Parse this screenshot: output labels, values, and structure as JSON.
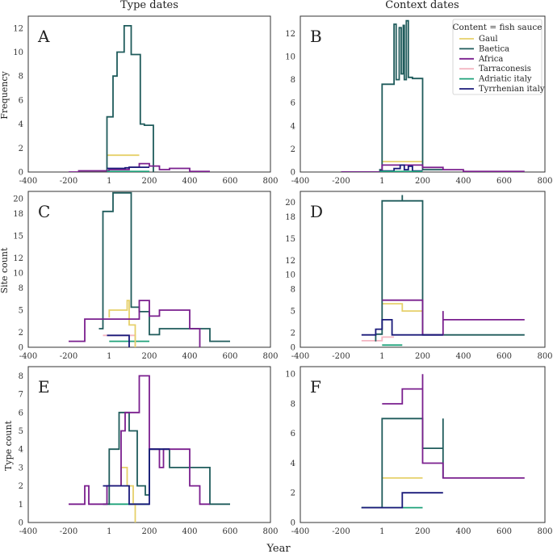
{
  "figure": {
    "col_titles": [
      "Type dates",
      "Context dates"
    ],
    "xlabel": "Year",
    "row_ylabels": [
      "Frequency",
      "Site count",
      "Type count"
    ],
    "legend": {
      "title": "Content = fish sauce",
      "placement": "top-right of panel B",
      "entries": [
        {
          "name": "Gaul",
          "color": "#e6d06a"
        },
        {
          "name": "Baetica",
          "color": "#1f5b5b"
        },
        {
          "name": "Africa",
          "color": "#7a1f8e"
        },
        {
          "name": "Tarraconesis",
          "color": "#f4b6c2"
        },
        {
          "name": "Adriatic italy",
          "color": "#1fa27a"
        },
        {
          "name": "Tyrrhenian italy",
          "color": "#1a1a7a"
        }
      ]
    }
  },
  "chart_data": [
    {
      "panel": "A",
      "type": "line",
      "step": true,
      "xlim": [
        -400,
        800
      ],
      "ylim": [
        0,
        13
      ],
      "xticks": [
        "-400",
        "-200",
        "1",
        "200",
        "400",
        "600",
        "800"
      ],
      "xtick_values": [
        -400,
        -200,
        1,
        200,
        400,
        600,
        800
      ],
      "yticks": [
        "0",
        "2",
        "4",
        "6",
        "8",
        "10",
        "12"
      ],
      "ytick_values": [
        0,
        2,
        4,
        6,
        8,
        10,
        12
      ],
      "series": [
        {
          "color": "#e6d06a",
          "x": [
            -10,
            100,
            100,
            150
          ],
          "y": [
            1.4,
            1.4,
            1.4,
            1.4
          ]
        },
        {
          "color": "#1f5b5b",
          "x": [
            -10,
            -10,
            20,
            20,
            40,
            40,
            75,
            75,
            110,
            110,
            155,
            155,
            175,
            175,
            220,
            220
          ],
          "y": [
            0,
            4.6,
            4.6,
            8,
            8,
            10,
            10,
            12.2,
            12.2,
            9.8,
            9.8,
            4,
            4,
            3.9,
            3.9,
            0
          ]
        },
        {
          "color": "#7a1f8e",
          "x": [
            -200,
            -150,
            -150,
            0,
            0,
            100,
            100,
            150,
            150,
            200,
            200,
            250,
            250,
            300,
            300,
            400,
            400,
            500
          ],
          "y": [
            0,
            0,
            0.1,
            0.1,
            0.2,
            0.2,
            0.4,
            0.4,
            0.7,
            0.7,
            0.5,
            0.5,
            0.2,
            0.2,
            0.3,
            0.3,
            0.05,
            0.05
          ]
        },
        {
          "color": "#1a1a7a",
          "x": [
            -10,
            80,
            80,
            100,
            100,
            200
          ],
          "y": [
            0.3,
            0.3,
            0.35,
            0.35,
            0.4,
            0.4
          ]
        },
        {
          "color": "#1fa27a",
          "x": [
            -10,
            200
          ],
          "y": [
            0.05,
            0.05
          ]
        }
      ]
    },
    {
      "panel": "B",
      "type": "line",
      "step": true,
      "xlim": [
        -400,
        800
      ],
      "ylim": [
        0,
        13.5
      ],
      "xticks": [
        "-400",
        "-200",
        "1",
        "200",
        "400",
        "600",
        "800"
      ],
      "xtick_values": [
        -400,
        -200,
        1,
        200,
        400,
        600,
        800
      ],
      "yticks": [
        "0",
        "2",
        "4",
        "6",
        "8",
        "10",
        "12"
      ],
      "ytick_values": [
        0,
        2,
        4,
        6,
        8,
        10,
        12
      ],
      "series": [
        {
          "color": "#e6d06a",
          "x": [
            1,
            200
          ],
          "y": [
            0.9,
            0.9
          ]
        },
        {
          "color": "#1f5b5b",
          "x": [
            -200,
            -10,
            -10,
            1,
            1,
            60,
            60,
            70,
            70,
            85,
            85,
            95,
            95,
            105,
            105,
            110,
            110,
            120,
            120,
            130,
            130,
            140,
            140,
            150,
            150,
            200,
            200,
            300
          ],
          "y": [
            0,
            0,
            0.2,
            0.2,
            7.6,
            7.6,
            12.8,
            12.8,
            8,
            8,
            12.5,
            12.5,
            8.5,
            8.5,
            12.7,
            12.7,
            8,
            8,
            13.1,
            13.1,
            8.2,
            8.2,
            8.2,
            8.2,
            8.1,
            8.1,
            0.2,
            0.2
          ]
        },
        {
          "color": "#7a1f8e",
          "x": [
            -200,
            1,
            1,
            200,
            200,
            300,
            300,
            400,
            400,
            700
          ],
          "y": [
            0,
            0,
            0.6,
            0.6,
            0.4,
            0.4,
            0.2,
            0.2,
            0.05,
            0.05
          ]
        },
        {
          "color": "#1a1a7a",
          "x": [
            -10,
            60,
            60,
            90,
            90,
            110,
            110,
            130,
            130,
            150,
            150,
            200
          ],
          "y": [
            0.1,
            0.1,
            0.3,
            0.3,
            0.6,
            0.6,
            0.2,
            0.2,
            0.5,
            0.5,
            0.1,
            0.1
          ]
        },
        {
          "color": "#1fa27a",
          "x": [
            -10,
            200
          ],
          "y": [
            0.05,
            0.05
          ]
        }
      ]
    },
    {
      "panel": "C",
      "type": "line",
      "step": true,
      "xlim": [
        -400,
        800
      ],
      "ylim": [
        0,
        21
      ],
      "xticks": [
        "-400",
        "-200",
        "1",
        "200",
        "400",
        "600",
        "800"
      ],
      "xtick_values": [
        -400,
        -200,
        1,
        200,
        400,
        600,
        800
      ],
      "yticks": [
        "0",
        "2",
        "5",
        "8",
        "10",
        "12",
        "15",
        "18",
        "20"
      ],
      "ytick_values": [
        0,
        2,
        5,
        8,
        10,
        12,
        15,
        18,
        20
      ],
      "series": [
        {
          "color": "#f4b6c2",
          "x": [
            -30,
            130,
            130
          ],
          "y": [
            1.6,
            1.6,
            0
          ]
        },
        {
          "color": "#1fa27a",
          "x": [
            1,
            200
          ],
          "y": [
            0.8,
            0.8
          ]
        },
        {
          "color": "#e6d06a",
          "x": [
            1,
            1,
            90,
            90,
            100,
            100,
            130,
            130
          ],
          "y": [
            4,
            5,
            5,
            6.3,
            6.3,
            3,
            3,
            0
          ]
        },
        {
          "color": "#1f5b5b",
          "x": [
            -50,
            -30,
            -30,
            20,
            20,
            110,
            110,
            150,
            150,
            200,
            200,
            250,
            250,
            500,
            500,
            600
          ],
          "y": [
            2.5,
            2.5,
            18.3,
            18.3,
            20.8,
            20.8,
            5.4,
            5.4,
            4.8,
            4.8,
            1.7,
            1.7,
            2.5,
            2.5,
            0.8,
            0.8
          ]
        },
        {
          "color": "#7a1f8e",
          "x": [
            -200,
            -120,
            -120,
            150,
            150,
            200,
            200,
            250,
            250,
            400,
            400,
            450,
            450
          ],
          "y": [
            0.8,
            0.8,
            3.8,
            3.8,
            6.3,
            6.3,
            4.2,
            4.2,
            5,
            5,
            2.5,
            2.5,
            0
          ]
        },
        {
          "color": "#1a1a7a",
          "x": [
            -10,
            100,
            100
          ],
          "y": [
            1.6,
            1.6,
            0
          ]
        }
      ]
    },
    {
      "panel": "D",
      "type": "line",
      "step": true,
      "xlim": [
        -400,
        800
      ],
      "ylim": [
        0,
        21.5
      ],
      "xticks": [
        "-400",
        "-200",
        "1",
        "200",
        "400",
        "600",
        "800"
      ],
      "xtick_values": [
        -400,
        -200,
        1,
        200,
        400,
        600,
        800
      ],
      "yticks": [
        "0",
        "2",
        "5",
        "8",
        "10",
        "12",
        "15",
        "18",
        "20"
      ],
      "ytick_values": [
        0,
        2,
        5,
        8,
        10,
        12,
        15,
        18,
        20
      ],
      "series": [
        {
          "color": "#f4b6c2",
          "x": [
            -100,
            1,
            1,
            60
          ],
          "y": [
            0.9,
            0.9,
            1.4,
            1.4
          ]
        },
        {
          "color": "#1fa27a",
          "x": [
            1,
            100
          ],
          "y": [
            0.3,
            0.3
          ]
        },
        {
          "color": "#e6d06a",
          "x": [
            1,
            100,
            100,
            200
          ],
          "y": [
            6,
            6,
            5,
            5
          ]
        },
        {
          "color": "#1f5b5b",
          "x": [
            -30,
            -30,
            1,
            1,
            100,
            100,
            100,
            200,
            200,
            700
          ],
          "y": [
            0.8,
            1.8,
            1.8,
            20.2,
            20.2,
            21,
            20.2,
            20.2,
            1.7,
            1.7
          ]
        },
        {
          "color": "#7a1f8e",
          "x": [
            1,
            200,
            200,
            300,
            300,
            300,
            700
          ],
          "y": [
            6.5,
            6.5,
            1.7,
            1.7,
            5,
            3.8,
            3.8
          ]
        },
        {
          "color": "#1a1a7a",
          "x": [
            -100,
            -30,
            -30,
            1,
            1,
            50,
            50,
            300
          ],
          "y": [
            1.7,
            1.7,
            2.5,
            2.5,
            3.8,
            3.8,
            1.7,
            1.7
          ]
        }
      ]
    },
    {
      "panel": "E",
      "type": "line",
      "step": true,
      "xlim": [
        -400,
        800
      ],
      "ylim": [
        0,
        8.5
      ],
      "xticks": [
        "-400",
        "-200",
        "1",
        "200",
        "400",
        "600",
        "800"
      ],
      "xtick_values": [
        -400,
        -200,
        1,
        200,
        400,
        600,
        800
      ],
      "yticks": [
        "0",
        "1",
        "2",
        "3",
        "4",
        "5",
        "6",
        "7",
        "8"
      ],
      "ytick_values": [
        0,
        1,
        2,
        3,
        4,
        5,
        6,
        7,
        8
      ],
      "series": [
        {
          "color": "#1fa27a",
          "x": [
            1,
            200
          ],
          "y": [
            1,
            1
          ]
        },
        {
          "color": "#e6d06a",
          "x": [
            60,
            60,
            90,
            90,
            120,
            120,
            130,
            130
          ],
          "y": [
            2,
            3,
            3,
            2,
            2,
            1,
            1,
            0
          ]
        },
        {
          "color": "#1f5b5b",
          "x": [
            -30,
            1,
            1,
            50,
            50,
            100,
            100,
            140,
            140,
            180,
            180,
            200,
            200,
            300,
            300,
            500,
            500,
            600
          ],
          "y": [
            1,
            1,
            4,
            4,
            6,
            6,
            5,
            5,
            2,
            2,
            1.5,
            1.5,
            4,
            4,
            3,
            3,
            1,
            1
          ]
        },
        {
          "color": "#7a1f8e",
          "x": [
            -200,
            -120,
            -120,
            -100,
            -100,
            -10,
            -10,
            60,
            60,
            80,
            80,
            150,
            150,
            200,
            200,
            250,
            250,
            270,
            270,
            400,
            400,
            450,
            450,
            500
          ],
          "y": [
            1,
            1,
            2,
            2,
            1,
            1,
            2,
            2,
            5,
            5,
            6,
            6,
            8,
            8,
            4,
            4,
            3,
            3,
            4,
            4,
            2,
            2,
            1,
            1
          ]
        },
        {
          "color": "#1a1a7a",
          "x": [
            -30,
            100,
            100,
            200,
            200,
            300
          ],
          "y": [
            2,
            2,
            1,
            1,
            4,
            4
          ]
        }
      ]
    },
    {
      "panel": "F",
      "type": "line",
      "step": true,
      "xlim": [
        -400,
        800
      ],
      "ylim": [
        0,
        10.5
      ],
      "xticks": [
        "-400",
        "-200",
        "1",
        "200",
        "400",
        "600",
        "800"
      ],
      "xtick_values": [
        -400,
        -200,
        1,
        200,
        400,
        600,
        800
      ],
      "yticks": [
        "0",
        "2",
        "4",
        "6",
        "8",
        "10"
      ],
      "ytick_values": [
        0,
        2,
        4,
        6,
        8,
        10
      ],
      "series": [
        {
          "color": "#e6d06a",
          "x": [
            1,
            200
          ],
          "y": [
            3,
            3
          ]
        },
        {
          "color": "#1fa27a",
          "x": [
            -100,
            200
          ],
          "y": [
            1,
            1
          ]
        },
        {
          "color": "#1f5b5b",
          "x": [
            -100,
            1,
            1,
            200,
            200,
            300,
            300,
            300
          ],
          "y": [
            1,
            1,
            7,
            7,
            5,
            5,
            7,
            3
          ]
        },
        {
          "color": "#7a1f8e",
          "x": [
            1,
            100,
            100,
            200,
            200,
            200,
            300,
            300,
            700
          ],
          "y": [
            8,
            8,
            9,
            9,
            10,
            4,
            4,
            3,
            3
          ]
        },
        {
          "color": "#1a1a7a",
          "x": [
            -100,
            100,
            100,
            300
          ],
          "y": [
            1,
            1,
            2,
            2
          ]
        }
      ]
    }
  ]
}
